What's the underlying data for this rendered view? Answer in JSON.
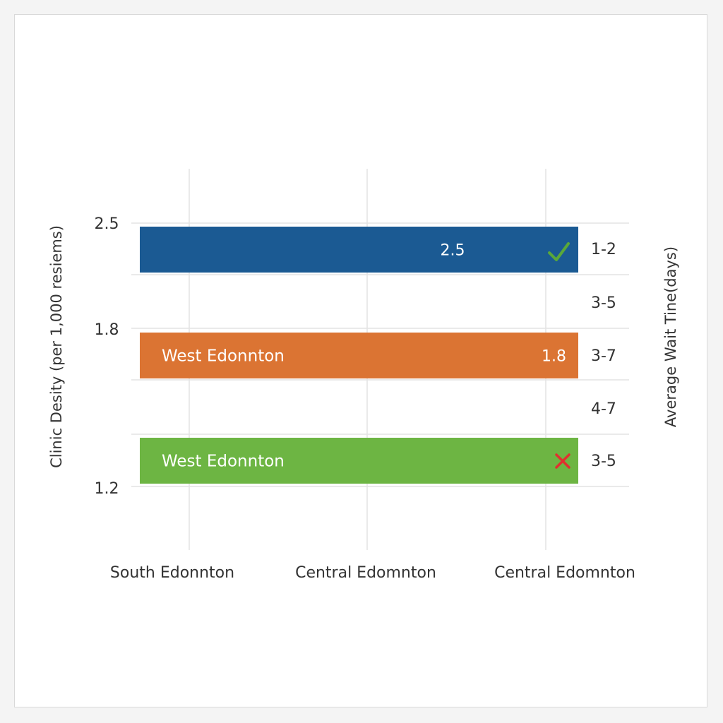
{
  "chart_data": {
    "type": "bar",
    "orientation": "horizontal",
    "y_axis_left": {
      "label": "Clinic Desity (per 1,000 resiems)",
      "ticks": [
        "2.5",
        "1.8",
        "1.2"
      ]
    },
    "y_axis_right": {
      "label": "Average Wait Tine(days)",
      "ticks": [
        "1-2",
        "3-5",
        "3-7",
        "4-7",
        "3-5"
      ]
    },
    "x_axis": {
      "ticks": [
        "South Edonnton",
        "Central Edomnton",
        "Central Edomnton"
      ]
    },
    "bars": [
      {
        "value": 2.5,
        "label": "",
        "value_label": "2.5",
        "color": "#1b5a93",
        "marker": "check"
      },
      {
        "value": 1.8,
        "label": "West Edonnton",
        "value_label": "1.8",
        "color": "#db7433",
        "marker": ""
      },
      {
        "value": 1.2,
        "label": "West Edonnton",
        "value_label": "",
        "color": "#6db543",
        "marker": "cross"
      }
    ],
    "grid": true,
    "colors": {
      "check": "#5aa839",
      "cross": "#e0312f",
      "grid": "#e3e3e3"
    }
  }
}
